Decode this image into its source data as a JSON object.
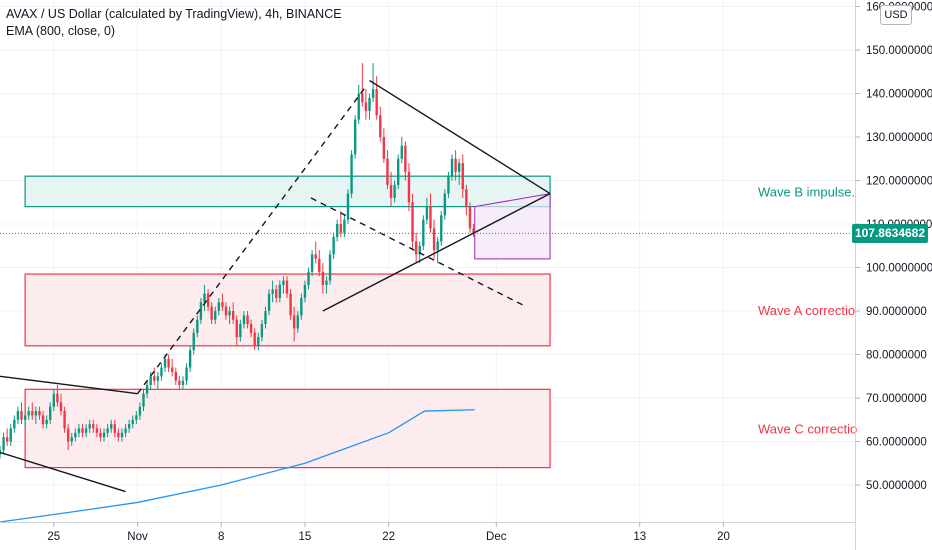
{
  "legend": {
    "symbol_line": "AVAX / US Dollar (calculated by TradingView), 4h, BINANCE",
    "indicator_line": "EMA (800, close, 0)"
  },
  "currency_button": "USD",
  "last_price_label": "107.8634682",
  "chart_data": {
    "type": "candlestick",
    "y_ticks": [
      "160.0000000",
      "150.0000000",
      "140.0000000",
      "130.0000000",
      "120.0000000",
      "110.0000000",
      "100.0000000",
      "90.0000000",
      "80.0000000",
      "70.0000000",
      "60.0000000",
      "50.0000000"
    ],
    "y_tick_values": [
      160,
      150,
      140,
      130,
      120,
      110,
      100,
      90,
      80,
      70,
      60,
      50
    ],
    "x_ticks": [
      "25",
      "Nov",
      "8",
      "15",
      "22",
      "Dec",
      "13",
      "20"
    ],
    "x_tick_days": [
      -7,
      0,
      7,
      14,
      21,
      30,
      42,
      49
    ],
    "ylim": [
      41.5,
      161.5
    ],
    "xlim_days": [
      -11.5,
      60
    ],
    "last_price": 107.8634682,
    "candles": [
      [
        -11.5,
        57,
        59,
        56,
        58
      ],
      [
        -11.2,
        58,
        62,
        57,
        61
      ],
      [
        -10.9,
        61,
        63,
        59,
        60
      ],
      [
        -10.6,
        60,
        64,
        59,
        63
      ],
      [
        -10.3,
        63,
        66,
        62,
        65
      ],
      [
        -10.0,
        65,
        68,
        64,
        67
      ],
      [
        -9.7,
        67,
        69,
        64,
        65
      ],
      [
        -9.4,
        65,
        67,
        63,
        66
      ],
      [
        -9.1,
        66,
        68,
        65,
        67
      ],
      [
        -8.8,
        67,
        69,
        65,
        66
      ],
      [
        -8.5,
        66,
        68,
        64,
        67
      ],
      [
        -8.2,
        67,
        68,
        65,
        66
      ],
      [
        -7.9,
        66,
        67,
        63,
        64
      ],
      [
        -7.6,
        64,
        66,
        63,
        65
      ],
      [
        -7.3,
        65,
        69,
        64,
        68
      ],
      [
        -7.0,
        68,
        72,
        67,
        71
      ],
      [
        -6.7,
        71,
        73,
        68,
        69
      ],
      [
        -6.4,
        69,
        71,
        66,
        67
      ],
      [
        -6.1,
        67,
        68,
        62,
        63
      ],
      [
        -5.8,
        63,
        64,
        58,
        60
      ],
      [
        -5.5,
        60,
        62,
        59,
        61
      ],
      [
        -5.2,
        61,
        63,
        60,
        62
      ],
      [
        -4.9,
        62,
        64,
        61,
        63
      ],
      [
        -4.6,
        63,
        64,
        61,
        62
      ],
      [
        -4.3,
        62,
        64,
        61,
        63
      ],
      [
        -4.0,
        63,
        65,
        62,
        64
      ],
      [
        -3.7,
        64,
        65,
        62,
        63
      ],
      [
        -3.4,
        63,
        64,
        61,
        62
      ],
      [
        -3.1,
        62,
        63,
        60,
        61
      ],
      [
        -2.8,
        61,
        63,
        60,
        62
      ],
      [
        -2.5,
        62,
        64,
        61,
        63
      ],
      [
        -2.2,
        63,
        65,
        62,
        64
      ],
      [
        -1.9,
        64,
        65,
        61,
        62
      ],
      [
        -1.6,
        62,
        63,
        60,
        61
      ],
      [
        -1.3,
        61,
        63,
        60,
        62
      ],
      [
        -1.0,
        62,
        64,
        61,
        63
      ],
      [
        -0.7,
        63,
        65,
        62,
        64
      ],
      [
        -0.4,
        64,
        66,
        63,
        65
      ],
      [
        -0.1,
        65,
        67,
        64,
        66
      ],
      [
        0.2,
        66,
        69,
        65,
        68
      ],
      [
        0.5,
        68,
        72,
        67,
        71
      ],
      [
        0.8,
        71,
        74,
        70,
        73
      ],
      [
        1.1,
        73,
        76,
        72,
        75
      ],
      [
        1.4,
        75,
        77,
        73,
        74
      ],
      [
        1.7,
        74,
        76,
        72,
        75
      ],
      [
        2.0,
        75,
        78,
        74,
        77
      ],
      [
        2.3,
        77,
        80,
        76,
        79
      ],
      [
        2.6,
        79,
        80,
        76,
        77
      ],
      [
        2.9,
        77,
        79,
        75,
        76
      ],
      [
        3.2,
        76,
        77,
        73,
        74
      ],
      [
        3.5,
        74,
        75,
        72,
        73
      ],
      [
        3.8,
        73,
        75,
        72,
        74
      ],
      [
        4.1,
        74,
        78,
        73,
        77
      ],
      [
        4.4,
        77,
        82,
        76,
        81
      ],
      [
        4.7,
        81,
        86,
        80,
        85
      ],
      [
        5.0,
        85,
        89,
        84,
        88
      ],
      [
        5.3,
        88,
        93,
        87,
        92
      ],
      [
        5.6,
        92,
        96,
        90,
        94
      ],
      [
        5.9,
        94,
        95,
        90,
        91
      ],
      [
        6.2,
        91,
        92,
        87,
        88
      ],
      [
        6.5,
        88,
        91,
        87,
        90
      ],
      [
        6.8,
        90,
        93,
        89,
        92
      ],
      [
        7.1,
        92,
        94,
        90,
        91
      ],
      [
        7.4,
        91,
        92,
        88,
        89
      ],
      [
        7.7,
        89,
        91,
        87,
        90
      ],
      [
        8.0,
        90,
        92,
        87,
        88
      ],
      [
        8.3,
        88,
        89,
        82,
        84
      ],
      [
        8.6,
        84,
        88,
        83,
        87
      ],
      [
        8.9,
        87,
        90,
        86,
        89
      ],
      [
        9.2,
        89,
        90,
        86,
        87
      ],
      [
        9.5,
        87,
        88,
        84,
        85
      ],
      [
        9.8,
        85,
        86,
        81,
        82
      ],
      [
        10.1,
        82,
        85,
        81,
        84
      ],
      [
        10.4,
        84,
        88,
        83,
        87
      ],
      [
        10.7,
        87,
        91,
        86,
        90
      ],
      [
        11.0,
        90,
        95,
        89,
        94
      ],
      [
        11.3,
        94,
        97,
        92,
        95
      ],
      [
        11.6,
        95,
        96,
        92,
        93
      ],
      [
        11.9,
        93,
        97,
        92,
        96
      ],
      [
        12.2,
        96,
        98,
        94,
        97
      ],
      [
        12.5,
        97,
        98,
        93,
        94
      ],
      [
        12.8,
        94,
        95,
        88,
        89
      ],
      [
        13.1,
        89,
        91,
        83,
        86
      ],
      [
        13.4,
        86,
        90,
        85,
        89
      ],
      [
        13.7,
        89,
        94,
        88,
        93
      ],
      [
        14.0,
        93,
        97,
        92,
        96
      ],
      [
        14.3,
        96,
        100,
        95,
        99
      ],
      [
        14.6,
        99,
        104,
        98,
        103
      ],
      [
        14.9,
        103,
        106,
        101,
        102
      ],
      [
        15.2,
        102,
        104,
        98,
        99
      ],
      [
        15.5,
        99,
        101,
        94,
        96
      ],
      [
        15.8,
        96,
        98,
        94,
        97
      ],
      [
        16.1,
        97,
        104,
        96,
        103
      ],
      [
        16.4,
        103,
        108,
        102,
        107
      ],
      [
        16.7,
        107,
        111,
        106,
        110
      ],
      [
        17.0,
        110,
        113,
        107,
        108
      ],
      [
        17.3,
        108,
        112,
        107,
        111
      ],
      [
        17.6,
        111,
        118,
        110,
        117
      ],
      [
        17.9,
        117,
        127,
        116,
        126
      ],
      [
        18.2,
        126,
        135,
        125,
        134
      ],
      [
        18.5,
        134,
        142,
        133,
        140
      ],
      [
        18.8,
        140,
        147,
        137,
        138
      ],
      [
        19.1,
        138,
        141,
        134,
        136
      ],
      [
        19.4,
        136,
        140,
        134,
        139
      ],
      [
        19.7,
        139,
        147,
        138,
        141
      ],
      [
        20.0,
        141,
        144,
        134,
        135
      ],
      [
        20.3,
        135,
        137,
        129,
        130
      ],
      [
        20.6,
        130,
        132,
        124,
        125
      ],
      [
        20.9,
        125,
        127,
        118,
        119
      ],
      [
        21.2,
        119,
        122,
        114,
        116
      ],
      [
        21.5,
        116,
        120,
        115,
        119
      ],
      [
        21.8,
        119,
        126,
        118,
        125
      ],
      [
        22.1,
        125,
        130,
        124,
        128
      ],
      [
        22.4,
        128,
        129,
        120,
        122
      ],
      [
        22.7,
        122,
        124,
        113,
        115
      ],
      [
        23.0,
        115,
        117,
        104,
        106
      ],
      [
        23.3,
        106,
        108,
        101,
        103
      ],
      [
        23.6,
        103,
        106,
        101,
        105
      ],
      [
        23.9,
        105,
        112,
        104,
        111
      ],
      [
        24.2,
        111,
        116,
        110,
        114
      ],
      [
        24.5,
        114,
        117,
        108,
        109
      ],
      [
        24.8,
        109,
        111,
        102,
        104
      ],
      [
        25.1,
        104,
        107,
        101,
        106
      ],
      [
        25.4,
        106,
        113,
        105,
        112
      ],
      [
        25.7,
        112,
        118,
        111,
        117
      ],
      [
        26.0,
        117,
        122,
        116,
        121
      ],
      [
        26.3,
        121,
        126,
        120,
        125
      ],
      [
        26.6,
        125,
        127,
        120,
        122
      ],
      [
        26.9,
        122,
        125,
        119,
        124
      ],
      [
        27.2,
        124,
        126,
        116,
        118
      ],
      [
        27.5,
        118,
        119,
        112,
        114
      ],
      [
        27.8,
        114,
        115,
        108,
        109
      ],
      [
        28.1,
        109,
        110,
        107,
        108
      ]
    ],
    "ema": [
      [
        -11.5,
        41.5
      ],
      [
        -5,
        44
      ],
      [
        0,
        46
      ],
      [
        7,
        50
      ],
      [
        14,
        55
      ],
      [
        21,
        62
      ],
      [
        24,
        67
      ],
      [
        28.2,
        67.3
      ]
    ],
    "ema_color": "#2196f3",
    "zones": [
      {
        "label": "Wave B impulse.",
        "top": 121,
        "bottom": 114,
        "stroke": "#089981",
        "fill": "#e6f4f4",
        "text_color": "#089981"
      },
      {
        "label": "Wave A correctio",
        "top": 98.5,
        "bottom": 82,
        "stroke": "#f23645",
        "fill": "#fdecee",
        "text_color": "#f23645"
      },
      {
        "label": "Wave C correctio",
        "top": 72,
        "bottom": 54,
        "stroke": "#f23645",
        "fill": "#fdecee",
        "text_color": "#f23645"
      }
    ],
    "lines": [
      {
        "name": "upper-wedge",
        "points": [
          [
            19.4,
            143
          ],
          [
            34.5,
            117
          ]
        ],
        "color": "#131722",
        "dash": false
      },
      {
        "name": "lower-wedge",
        "points": [
          [
            15.5,
            90
          ],
          [
            34.5,
            117
          ]
        ],
        "color": "#131722",
        "dash": false
      },
      {
        "name": "impulse-dashed",
        "points": [
          [
            0,
            71
          ],
          [
            19.2,
            142
          ]
        ],
        "color": "#131722",
        "dash": true
      },
      {
        "name": "projection-dashed",
        "points": [
          [
            14.5,
            116
          ],
          [
            32.5,
            91
          ]
        ],
        "color": "#131722",
        "dash": true
      },
      {
        "name": "prior-upper-trend",
        "points": [
          [
            -11.5,
            75
          ],
          [
            0,
            71
          ]
        ],
        "color": "#131722",
        "dash": false
      },
      {
        "name": "prior-lower-trend",
        "points": [
          [
            -11.5,
            57.5
          ],
          [
            -1,
            48.5
          ]
        ],
        "color": "#131722",
        "dash": false
      }
    ],
    "target_box": {
      "points": [
        [
          28.2,
          114
        ],
        [
          34.5,
          117
        ],
        [
          34.5,
          102
        ],
        [
          28.2,
          102
        ]
      ],
      "stroke": "#9c27b0",
      "fill": "#f3e5f5"
    }
  }
}
